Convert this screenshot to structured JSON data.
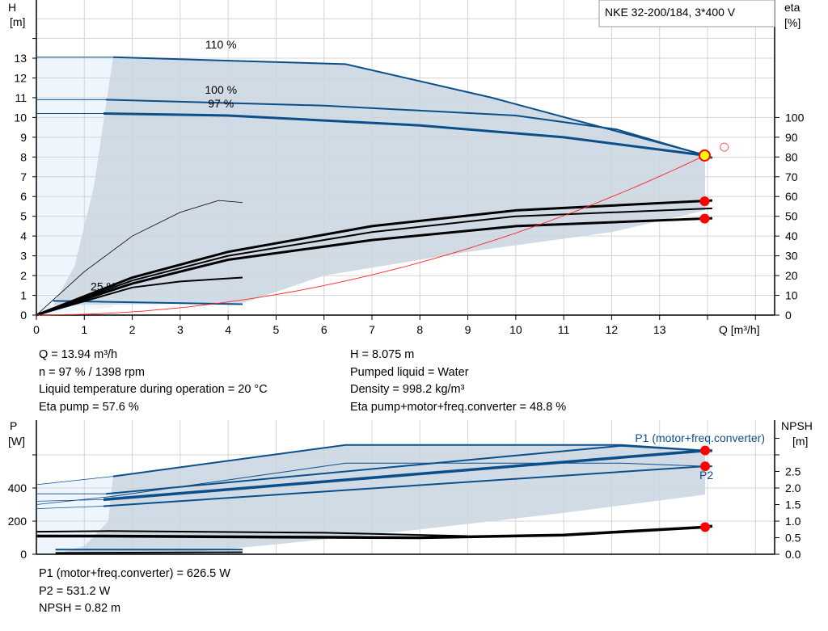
{
  "title": "NKE 32-200/184, 3*400 V",
  "colors": {
    "curve_blue": "#0b4f8a",
    "region_grey": "#d0dbe6",
    "region_light": "#eef5fd",
    "efficiency": "#000000",
    "system_curve": "#ff2020",
    "point_red": "#ff0000",
    "point_yellow": "#ffff00",
    "grid": "#d4d4d4"
  },
  "info_top": {
    "left": [
      "Q = 13.94 m³/h",
      "n = 97 % / 1398 rpm",
      "Liquid temperature during operation = 20 °C",
      "Eta pump = 57.6 %"
    ],
    "right": [
      "H = 8.075 m",
      "Pumped liquid = Water",
      "Density = 998.2 kg/m³",
      "Eta pump+motor+freq.converter = 48.8 %"
    ]
  },
  "info_bottom": [
    "P1 (motor+freq.converter) = 626.5 W",
    "P2 = 531.2 W",
    "NPSH = 0.82 m"
  ],
  "chart_data": [
    {
      "type": "line",
      "xlabel": "Q [m³/h]",
      "ylabel_left": [
        "H",
        "[m]"
      ],
      "ylabel_right": [
        "eta",
        "[%]"
      ],
      "xlim": [
        0,
        15.4
      ],
      "ylim_left": [
        0,
        15.9
      ],
      "ylim_right": [
        0,
        159
      ],
      "x_ticks": [
        "0",
        "1",
        "2",
        "3",
        "4",
        "5",
        "6",
        "7",
        "8",
        "9",
        "10",
        "11",
        "12",
        "13"
      ],
      "y_ticks_left": [
        "0",
        "1",
        "2",
        "3",
        "4",
        "5",
        "6",
        "7",
        "8",
        "9",
        "10",
        "11",
        "12",
        "13"
      ],
      "y_ticks_right": [
        "0",
        "10",
        "20",
        "30",
        "40",
        "50",
        "60",
        "70",
        "80",
        "90",
        "100"
      ],
      "grid": true,
      "curve_labels": [
        {
          "text": "110 %",
          "x": 3.85,
          "y": 13.5
        },
        {
          "text": "100 %",
          "x": 3.85,
          "y": 11.2
        },
        {
          "text": "97 %",
          "x": 3.85,
          "y": 10.5
        },
        {
          "text": "25 %",
          "x": 1.4,
          "y": 1.25
        }
      ],
      "head_series": [
        {
          "name": "110 %",
          "points": [
            [
              0,
              13.05
            ],
            [
              1.6,
              13.05
            ],
            [
              6.45,
              12.7
            ],
            [
              9.5,
              11.0
            ],
            [
              13.95,
              8.1
            ]
          ]
        },
        {
          "name": "100 %",
          "points": [
            [
              0,
              10.9
            ],
            [
              1.45,
              10.9
            ],
            [
              6,
              10.6
            ],
            [
              10,
              10.1
            ],
            [
              12.1,
              9.4
            ],
            [
              13.95,
              8.08
            ]
          ]
        },
        {
          "name": "97 %",
          "points": [
            [
              0,
              10.2
            ],
            [
              1.4,
              10.2
            ],
            [
              4,
              10.1
            ],
            [
              8,
              9.6
            ],
            [
              11,
              9.0
            ],
            [
              13.95,
              8.08
            ],
            [
              14.1,
              7.95
            ]
          ]
        },
        {
          "name": "25 %",
          "points": [
            [
              0.35,
              0.72
            ],
            [
              4.3,
              0.55
            ]
          ]
        }
      ],
      "eta_series": [
        {
          "points": [
            [
              0,
              0
            ],
            [
              2,
              19
            ],
            [
              4,
              32
            ],
            [
              7,
              45
            ],
            [
              10,
              53
            ],
            [
              14.1,
              58
            ]
          ]
        },
        {
          "points": [
            [
              0,
              0
            ],
            [
              2,
              17.5
            ],
            [
              4,
              30
            ],
            [
              7,
              42
            ],
            [
              10,
              50
            ],
            [
              14.1,
              54
            ]
          ]
        },
        {
          "points": [
            [
              0,
              0
            ],
            [
              2,
              16
            ],
            [
              4,
              28
            ],
            [
              7,
              38
            ],
            [
              10,
              45
            ],
            [
              14.1,
              49
            ]
          ]
        },
        {
          "points": [
            [
              0,
              0
            ],
            [
              1,
              22
            ],
            [
              2,
              40
            ],
            [
              3,
              52
            ],
            [
              3.8,
              58
            ],
            [
              4.3,
              57
            ]
          ]
        },
        {
          "points": [
            [
              0,
              0
            ],
            [
              2,
              14
            ],
            [
              3,
              17
            ],
            [
              4.3,
              19
            ]
          ]
        }
      ],
      "system_curve": {
        "h_at_duty": 8.075,
        "q_at_duty": 13.94
      },
      "duty_point": {
        "q": 13.94,
        "h": 8.075
      },
      "eta_points": [
        57.6,
        48.8
      ],
      "open_marker": {
        "q": 14.35,
        "h": 8.5
      }
    },
    {
      "type": "line",
      "ylabel_left": [
        "P",
        "[W]"
      ],
      "ylabel_right": [
        "NPSH",
        "[m]"
      ],
      "xlim": [
        0,
        15.4
      ],
      "ylim_left": [
        0,
        800
      ],
      "ylim_right": [
        0,
        4.0
      ],
      "y_ticks_left": [
        "0",
        "200",
        "400"
      ],
      "y_ticks_right": [
        "0.0",
        "0.5",
        "1.0",
        "1.5",
        "2.0",
        "2.5"
      ],
      "grid": true,
      "series_labels": [
        "P1 (motor+freq.converter)",
        "P2"
      ],
      "power_series": [
        {
          "points": [
            [
              0,
              420
            ],
            [
              1.6,
              470
            ],
            [
              6.45,
              660
            ],
            [
              12.2,
              660
            ],
            [
              13.95,
              626
            ]
          ]
        },
        {
          "points": [
            [
              0,
              365
            ],
            [
              1.45,
              365
            ],
            [
              12.2,
              655
            ],
            [
              13.95,
              626
            ]
          ]
        },
        {
          "points": [
            [
              0,
              320
            ],
            [
              1.4,
              330
            ],
            [
              13.95,
              626
            ],
            [
              14.1,
              625
            ]
          ]
        },
        {
          "points": [
            [
              0,
              300
            ],
            [
              1.6,
              350
            ],
            [
              6.45,
              550
            ],
            [
              12.2,
              550
            ],
            [
              13.95,
              531
            ]
          ]
        },
        {
          "points": [
            [
              0,
              275
            ],
            [
              1.4,
              290
            ],
            [
              13.95,
              531
            ],
            [
              14.1,
              531
            ]
          ]
        },
        {
          "points": [
            [
              0.4,
              28
            ],
            [
              4.3,
              28
            ]
          ]
        }
      ],
      "npsh_series": [
        {
          "points": [
            [
              0,
              0.55
            ],
            [
              1.4,
              0.55
            ],
            [
              5,
              0.52
            ],
            [
              8,
              0.5
            ],
            [
              11,
              0.58
            ],
            [
              13.95,
              0.82
            ],
            [
              14.1,
              0.85
            ]
          ]
        },
        {
          "points": [
            [
              0,
              0.68
            ],
            [
              1.5,
              0.7
            ],
            [
              6,
              0.65
            ],
            [
              9,
              0.55
            ]
          ]
        },
        {
          "points": [
            [
              0.4,
              0.04
            ],
            [
              4.3,
              0.06
            ]
          ]
        }
      ],
      "p1_point": 626.5,
      "p2_point": 531.2,
      "npsh_point": 0.82
    }
  ]
}
